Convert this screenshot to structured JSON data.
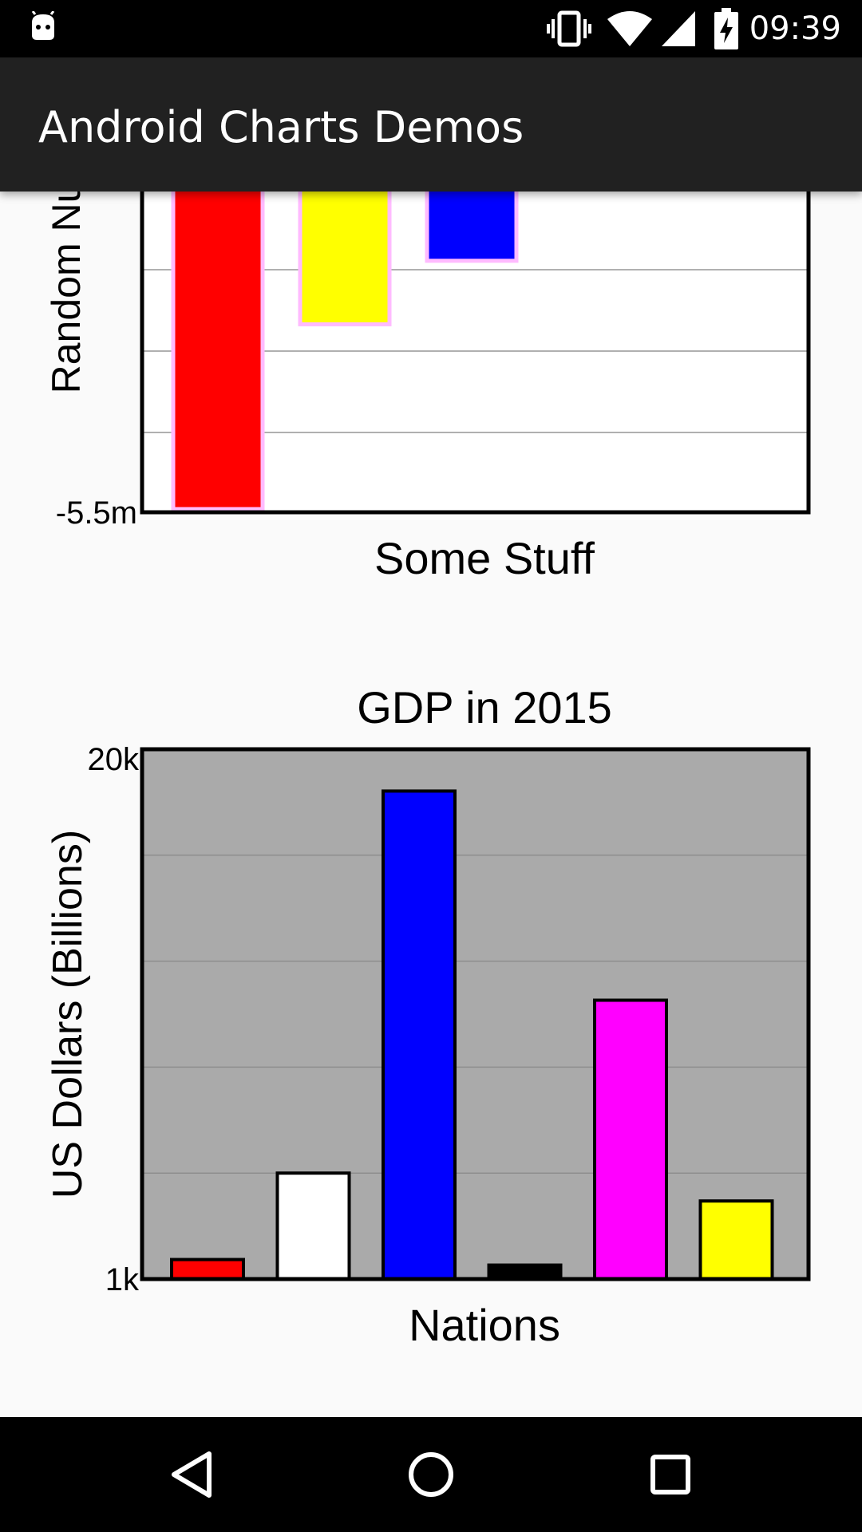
{
  "status_bar": {
    "time": "09:39",
    "icons": [
      "android-debug-icon",
      "vibrate-icon",
      "wifi-icon",
      "cell-signal-icon",
      "battery-charging-icon"
    ]
  },
  "app_bar": {
    "title": "Android Charts Demos"
  },
  "chart_data": [
    {
      "type": "bar",
      "title": "",
      "xlabel": "Some Stuff",
      "ylabel": "Random Nu",
      "ylim_visible_bottom_label": "-5.5m",
      "grid": true,
      "bar_fill_colors": [
        "#ff0000",
        "#ffff00",
        "#0000ff"
      ],
      "bar_border_color": "#ffbbff",
      "values": [
        -5.5,
        -2.3,
        -1.2
      ],
      "scroll_clipped_top": true
    },
    {
      "type": "bar",
      "title": "GDP in 2015",
      "xlabel": "Nations",
      "ylabel": "US Dollars (Billions)",
      "yticks": [
        "20k",
        "1k"
      ],
      "ylim": [
        1000,
        20000
      ],
      "grid": true,
      "plot_background": "#aaaaaa",
      "bar_fill_colors": [
        "#ff0000",
        "#ffffff",
        "#0000ff",
        "#000000",
        "#ff00ff",
        "#ffff00"
      ],
      "values": [
        1700,
        4800,
        18500,
        1500,
        11000,
        3800
      ]
    }
  ],
  "nav_bar": {
    "buttons": [
      "back-button",
      "home-button",
      "recents-button"
    ]
  }
}
